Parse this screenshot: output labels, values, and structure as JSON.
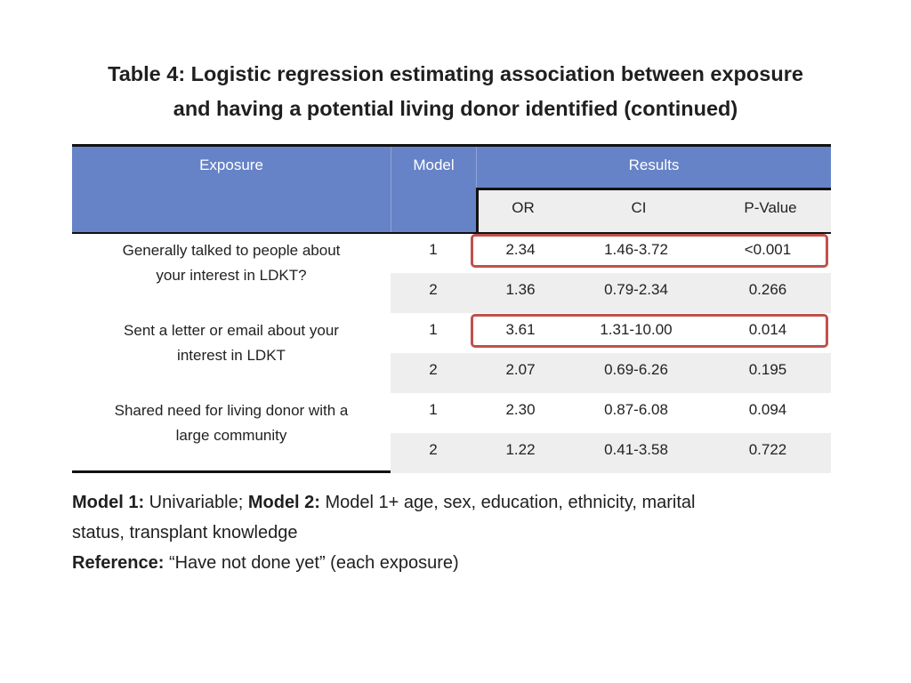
{
  "title": {
    "line1": "Table 4: Logistic regression estimating association between exposure",
    "line2": "and having a potential living donor identified (continued)"
  },
  "table": {
    "headers": {
      "exposure": "Exposure",
      "model": "Model",
      "results": "Results"
    },
    "subheaders": {
      "or": "OR",
      "ci": "CI",
      "p": "P-Value"
    },
    "exposures": [
      {
        "line1": "Generally talked to people about",
        "line2": "your interest in LDKT?"
      },
      {
        "line1": "Sent a letter or email about your",
        "line2": "interest in LDKT"
      },
      {
        "line1": "Shared need for living donor with a",
        "line2": "large community"
      }
    ],
    "rows": [
      {
        "model": "1",
        "or": "2.34",
        "ci": "1.46-3.72",
        "p": "<0.001"
      },
      {
        "model": "2",
        "or": "1.36",
        "ci": "0.79-2.34",
        "p": "0.266"
      },
      {
        "model": "1",
        "or": "3.61",
        "ci": "1.31-10.00",
        "p": "0.014"
      },
      {
        "model": "2",
        "or": "2.07",
        "ci": "0.69-6.26",
        "p": "0.195"
      },
      {
        "model": "1",
        "or": "2.30",
        "ci": "0.87-6.08",
        "p": "0.094"
      },
      {
        "model": "2",
        "or": "1.22",
        "ci": "0.41-3.58",
        "p": "0.722"
      }
    ],
    "highlight_color": "#c0504d",
    "header_color": "#6683c7"
  },
  "notes": {
    "model1_label": "Model 1:",
    "model1_text": " Univariable; ",
    "model2_label": "Model 2:",
    "model2_text": " Model 1+ age, sex, education, ethnicity, marital",
    "model2_text_cont": "status, transplant knowledge",
    "reference_label": "Reference:",
    "reference_text": " “Have not done yet” (each exposure)"
  }
}
